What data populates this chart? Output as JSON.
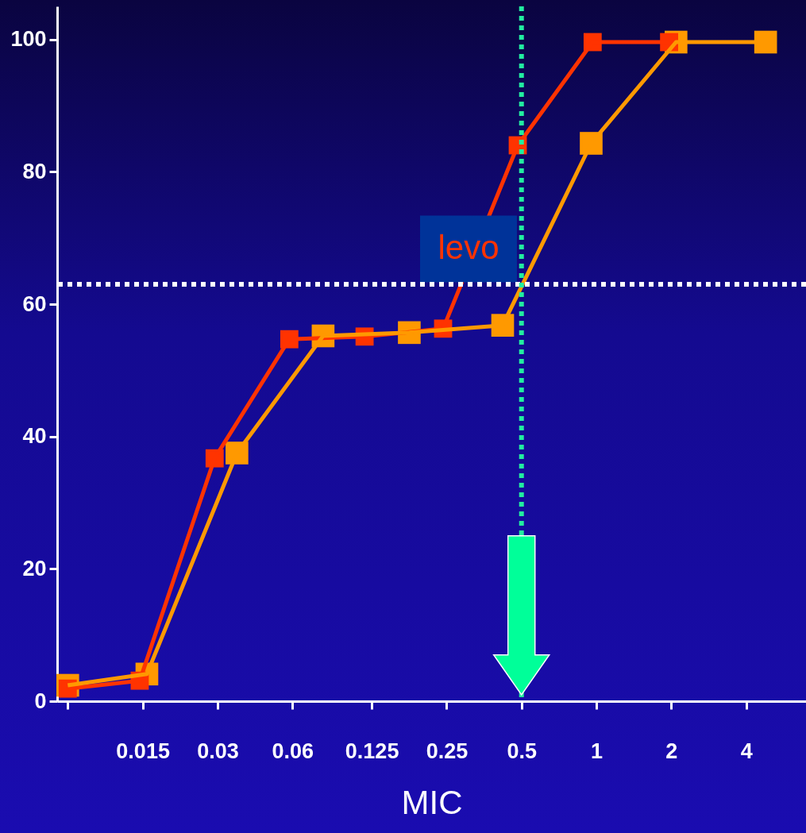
{
  "chart_data": {
    "type": "line",
    "xlabel": "MIC",
    "log": "x",
    "xlim": [
      0.0068,
      6.96
    ],
    "xticks": [
      {
        "value": 0.0075,
        "label": null
      },
      0.015,
      0.03,
      0.06,
      0.125,
      0.25,
      0.5,
      1,
      2,
      4
    ],
    "ylim": [
      0,
      105
    ],
    "yticks": [
      0,
      20,
      40,
      60,
      80,
      100
    ],
    "series": [
      {
        "name": "levo",
        "color": "#ff3300",
        "x": [
          0.0075,
          0.0146,
          0.0292,
          0.0583,
          0.117,
          0.242,
          0.483,
          0.966,
          1.96
        ],
        "values": [
          1.9,
          3.1,
          36.7,
          54.7,
          55.1,
          56.3,
          84,
          99.6,
          99.6
        ]
      },
      {
        "color": "#ff9900",
        "x": [
          0.0075,
          0.0156,
          0.0359,
          0.0797,
          0.177,
          0.42,
          0.953,
          2.09,
          4.79
        ],
        "values": [
          2.4,
          4.1,
          37.5,
          55.2,
          55.7,
          56.8,
          84.3,
          99.6,
          99.6
        ]
      }
    ],
    "ref_lines": [
      {
        "axis": "y",
        "value": 63,
        "color": "#ffffff",
        "line_style": "dotted"
      },
      {
        "axis": "x",
        "value": 0.5,
        "color": "#22eea0",
        "line_style": "dotted"
      }
    ],
    "marker": "square",
    "line_style": "solid"
  }
}
